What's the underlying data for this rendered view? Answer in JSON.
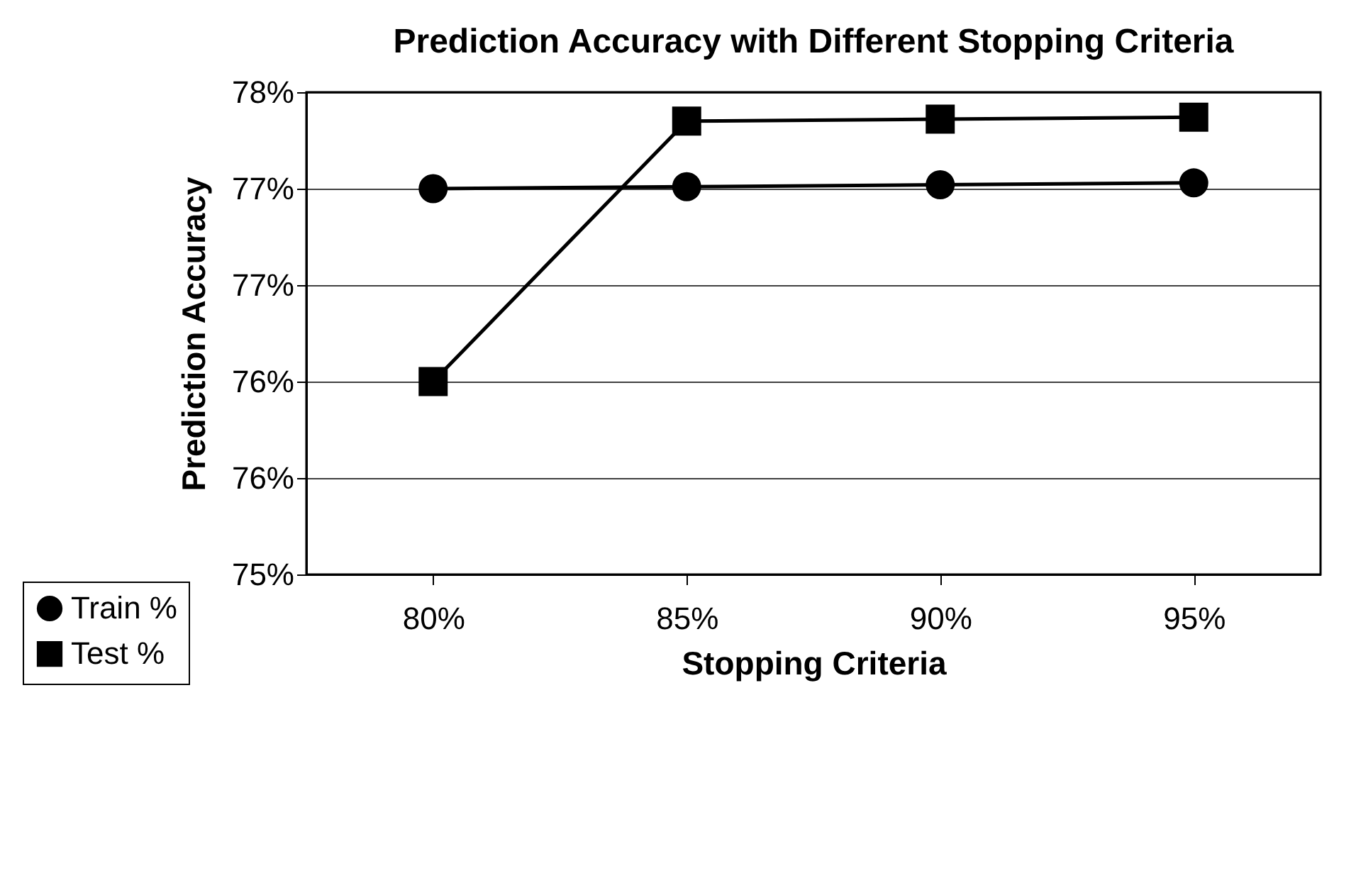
{
  "chart_data": {
    "type": "line",
    "title": "Prediction Accuracy with Different Stopping Criteria",
    "xlabel": "Stopping Criteria",
    "ylabel": "Prediction Accuracy",
    "categories": [
      "80%",
      "85%",
      "90%",
      "95%"
    ],
    "series": [
      {
        "name": "Train %",
        "color": "#000000",
        "marker": "circle",
        "values": [
          77.0,
          77.01,
          77.02,
          77.03
        ]
      },
      {
        "name": "Test %",
        "color": "#000000",
        "marker": "square",
        "values": [
          76.0,
          77.35,
          77.36,
          77.37
        ]
      }
    ],
    "ylim": [
      75,
      77.5
    ],
    "yticks": [
      {
        "value": 75,
        "label": "75%"
      },
      {
        "value": 75.5,
        "label": "76%"
      },
      {
        "value": 76,
        "label": "76%"
      },
      {
        "value": 76.5,
        "label": "77%"
      },
      {
        "value": 77,
        "label": "77%"
      },
      {
        "value": 77.5,
        "label": "78%"
      }
    ],
    "grid": "y",
    "legend": "bottom left",
    "line_style": "solid"
  }
}
